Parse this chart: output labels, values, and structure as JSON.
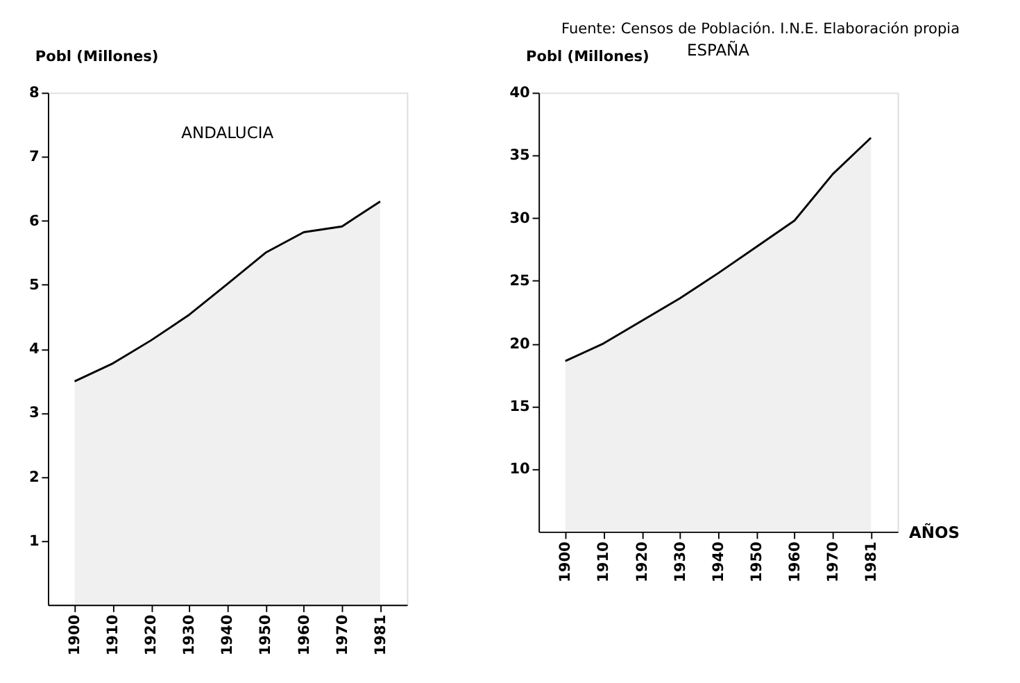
{
  "chart_data": [
    {
      "type": "area",
      "title": "ANDALUCIA",
      "ylabel": "Pobl (Millones)",
      "annotations": [
        "Fuente: Censos de Población. I.N.E. Elaboración propia"
      ],
      "categories": [
        "1900",
        "1910",
        "1920",
        "1930",
        "1940",
        "1950",
        "1960",
        "1970",
        "1981"
      ],
      "series": [
        {
          "color": "#000000",
          "values": [
            3.49,
            3.77,
            4.13,
            4.53,
            5.01,
            5.5,
            5.82,
            5.91,
            6.3
          ]
        }
      ],
      "ylim": [
        0,
        8
      ],
      "yticks": [
        1,
        2,
        3,
        4,
        5,
        6,
        7,
        8
      ],
      "grid": false
    },
    {
      "type": "area",
      "title": "ESPAÑA",
      "ylabel": "Pobl (Millones)",
      "xlabel": "AÑOS",
      "categories": [
        "1900",
        "1910",
        "1920",
        "1930",
        "1940",
        "1950",
        "1960",
        "1970",
        "1981"
      ],
      "series": [
        {
          "color": "#000000",
          "values": [
            18.6,
            20.0,
            21.8,
            23.6,
            25.6,
            27.7,
            29.8,
            33.5,
            36.4
          ]
        }
      ],
      "ylim": [
        5,
        40
      ],
      "yticks": [
        10,
        15,
        20,
        25,
        30,
        35,
        40
      ],
      "grid": false
    }
  ]
}
